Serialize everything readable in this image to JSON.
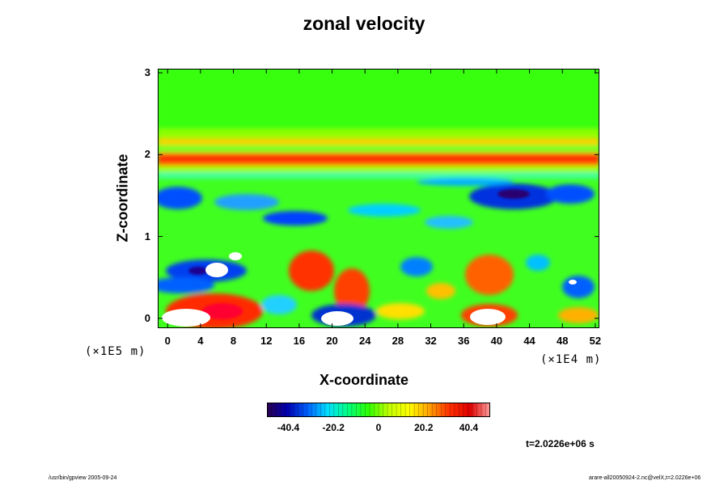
{
  "chart_data": {
    "type": "heatmap",
    "title": "zonal velocity",
    "xlabel": "X-coordinate",
    "ylabel": "Z-coordinate",
    "x_ticks": [
      "0",
      "4",
      "8",
      "12",
      "16",
      "20",
      "24",
      "28",
      "32",
      "36",
      "40",
      "44",
      "48",
      "52"
    ],
    "x_tick_values": [
      0,
      4,
      8,
      12,
      16,
      20,
      24,
      28,
      32,
      36,
      40,
      44,
      48,
      52
    ],
    "y_ticks": [
      "0",
      "1",
      "2",
      "3"
    ],
    "y_tick_values": [
      0,
      1,
      2,
      3
    ],
    "xlim": [
      -1.2,
      52.5
    ],
    "ylim": [
      -0.12,
      3.05
    ],
    "x_scale_note": "(×1E4 m)",
    "y_scale_note": "(×1E5 m)",
    "colorbar": {
      "ticks": [
        "-40.4",
        "-20.2",
        "0",
        "20.2",
        "40.4"
      ],
      "tick_values": [
        -40.4,
        -20.2,
        0,
        20.2,
        40.4
      ],
      "range": [
        -50,
        50
      ]
    },
    "time_label": "t=2.0226e+06 s",
    "colormap": [
      "#2a0050",
      "#0000b0",
      "#0060ff",
      "#00e0ff",
      "#00ff80",
      "#30ff00",
      "#c0ff00",
      "#ffff00",
      "#ffa000",
      "#ff3000",
      "#e00000",
      "#ffa0a0"
    ]
  },
  "footer": {
    "left": "/usr/bin/gpview 2005-09-24",
    "right": "arare-all20050924-2.nc@velX,t=2.0226e+06"
  }
}
